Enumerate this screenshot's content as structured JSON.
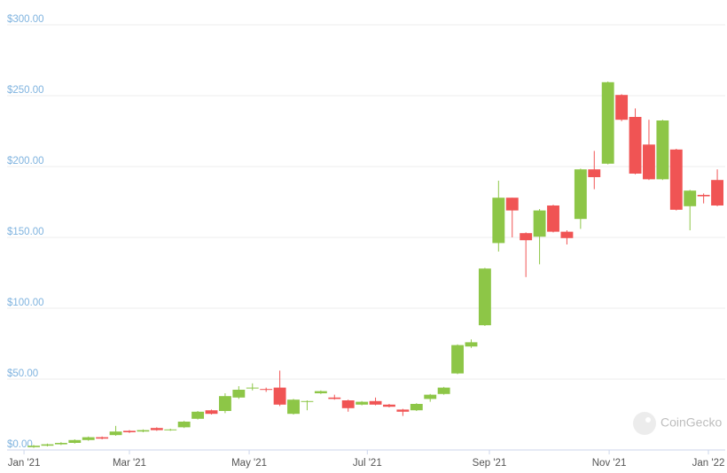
{
  "chart_data": {
    "type": "candlestick",
    "x": [
      0,
      1,
      2,
      3,
      4,
      5,
      6,
      7,
      8,
      9,
      10,
      11,
      12,
      13,
      14,
      15,
      16,
      17,
      18,
      19,
      20,
      21,
      22,
      23,
      24,
      25,
      26,
      27,
      28,
      29,
      30,
      31,
      32,
      33,
      34,
      35,
      36,
      37,
      38,
      39,
      40,
      41,
      42,
      43,
      44,
      45,
      46,
      47,
      48,
      49,
      50
    ],
    "open": [
      2,
      3,
      4,
      5,
      7,
      9,
      10.5,
      13.5,
      13,
      15.5,
      14,
      16,
      22,
      28,
      27.5,
      37,
      43.5,
      43,
      44,
      25.5,
      34,
      40,
      37,
      35,
      32,
      34.5,
      32,
      28.5,
      28,
      36,
      39.5,
      54,
      73,
      88,
      146,
      178,
      153,
      150.5,
      172.5,
      154,
      163,
      198,
      202,
      250.5,
      235,
      215.5,
      191,
      212,
      172,
      180,
      190.5
    ],
    "high": [
      3.5,
      4.5,
      5.5,
      7.5,
      9.5,
      9.5,
      17,
      14,
      14.5,
      16,
      15,
      20.5,
      27.5,
      28.5,
      40,
      45,
      47,
      44,
      56,
      36,
      35,
      42,
      39,
      35.5,
      34.5,
      37,
      32.5,
      29,
      33,
      39.5,
      44.5,
      74.5,
      78,
      128.5,
      190,
      178,
      153.5,
      170,
      173,
      155,
      198.5,
      211,
      260,
      251,
      241,
      233,
      233,
      212.5,
      183.5,
      181,
      198
    ],
    "low": [
      1.5,
      2.5,
      3.5,
      4.5,
      6.5,
      7.5,
      10,
      12,
      12.5,
      13.5,
      13.5,
      15.5,
      21.5,
      25,
      26,
      36,
      42,
      41,
      31,
      25,
      28,
      39.5,
      35.5,
      27,
      31.5,
      31.5,
      30,
      24,
      27.5,
      34,
      39,
      53.5,
      72,
      87.5,
      140,
      150,
      122,
      131,
      153.5,
      145,
      156,
      184,
      201.5,
      232,
      194.5,
      190.5,
      190.5,
      169,
      155,
      174,
      172
    ],
    "close": [
      3,
      4,
      5,
      7,
      9,
      8,
      13,
      12.5,
      14,
      14,
      14.5,
      20,
      27,
      25.5,
      38,
      42.5,
      44,
      42.5,
      32,
      35.5,
      34.5,
      41.5,
      36,
      29.5,
      34,
      32,
      30.5,
      27,
      32.5,
      39,
      44,
      74,
      76,
      128,
      178,
      169,
      148,
      169,
      154,
      149.5,
      198,
      192.5,
      259.5,
      233,
      195,
      191,
      232.5,
      169.5,
      183,
      179,
      172.5
    ],
    "up_color": "#8dc647",
    "down_color": "#f05454",
    "xlim": [
      -0.78,
      50.58
    ],
    "xticks": [
      {
        "value": -0.71,
        "label": "Jan '21"
      },
      {
        "value": 7.0,
        "label": "Mar '21"
      },
      {
        "value": 15.76,
        "label": "May '21"
      },
      {
        "value": 24.4,
        "label": "Jul '21"
      },
      {
        "value": 33.33,
        "label": "Sep '21"
      },
      {
        "value": 42.09,
        "label": "Nov '21"
      },
      {
        "value": 49.35,
        "label": "Jan '22"
      }
    ],
    "ylim": [
      0,
      300
    ],
    "yticks": [
      {
        "value": 0,
        "label": "$0.00"
      },
      {
        "value": 50,
        "label": "$50.00"
      },
      {
        "value": 100,
        "label": "$100.00"
      },
      {
        "value": 150,
        "label": "$150.00"
      },
      {
        "value": 200,
        "label": "$200.00"
      },
      {
        "value": 250,
        "label": "$250.00"
      },
      {
        "value": 300,
        "label": "$300.00"
      }
    ],
    "grid": true
  },
  "watermark": "CoinGecko"
}
